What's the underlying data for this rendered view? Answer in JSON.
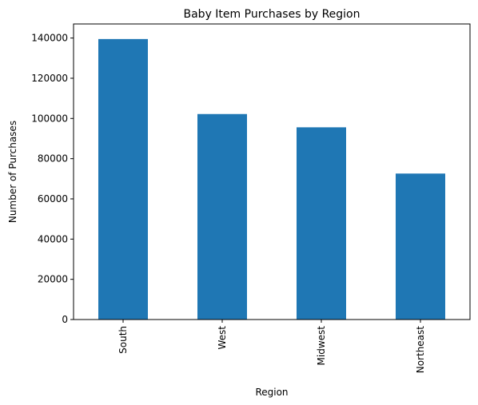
{
  "chart_data": {
    "type": "bar",
    "title": "Baby Item Purchases by Region",
    "xlabel": "Region",
    "ylabel": "Number of Purchases",
    "categories": [
      "South",
      "West",
      "Midwest",
      "Northeast"
    ],
    "values": [
      139500,
      102200,
      95600,
      72600
    ],
    "ylim": [
      0,
      147000
    ],
    "yticks": [
      0,
      20000,
      40000,
      60000,
      80000,
      100000,
      120000,
      140000
    ],
    "bar_color": "#1f77b4",
    "grid": false,
    "legend": "none"
  }
}
